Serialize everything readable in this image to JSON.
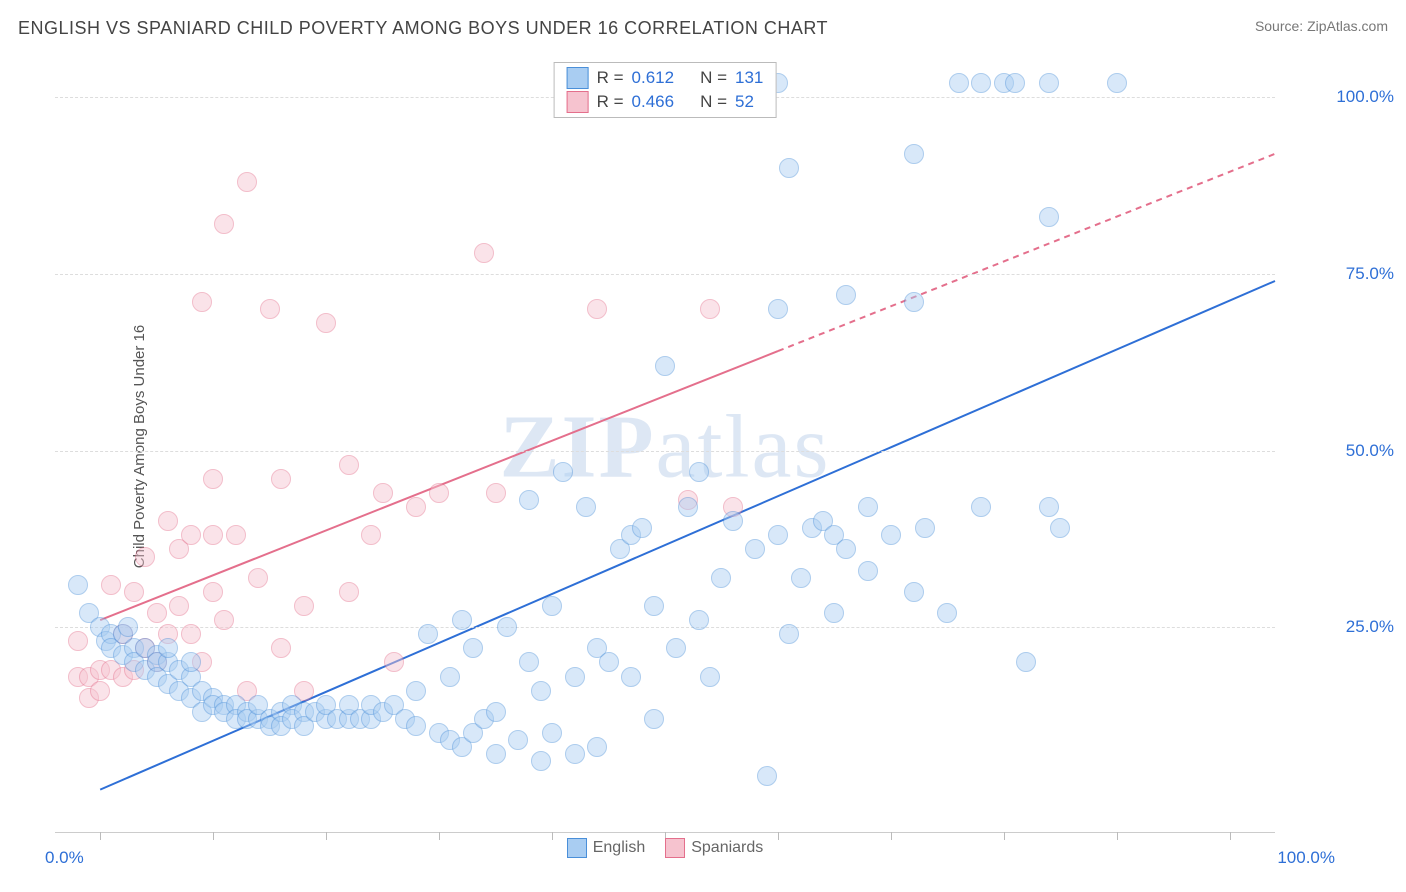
{
  "title": "ENGLISH VS SPANIARD CHILD POVERTY AMONG BOYS UNDER 16 CORRELATION CHART",
  "source_label": "Source: ",
  "source_name": "ZipAtlas.com",
  "y_axis_title": "Child Poverty Among Boys Under 16",
  "watermark_a": "ZIP",
  "watermark_b": "atlas",
  "chart": {
    "type": "scatter",
    "xlim": [
      -4,
      104
    ],
    "ylim": [
      -4,
      105
    ],
    "x_ticks": [
      0,
      10,
      20,
      30,
      40,
      50,
      60,
      70,
      80,
      90,
      100
    ],
    "y_grid": [
      25,
      50,
      75,
      100
    ],
    "x_label_min": "0.0%",
    "x_label_max": "100.0%",
    "y_labels": [
      {
        "v": 25,
        "t": "25.0%"
      },
      {
        "v": 50,
        "t": "50.0%"
      },
      {
        "v": 75,
        "t": "75.0%"
      },
      {
        "v": 100,
        "t": "100.0%"
      }
    ],
    "x_label_color": "#2e6fd6",
    "y_label_color": "#2e6fd6",
    "background_color": "#ffffff",
    "grid_color": "#dddddd",
    "marker_radius": 9,
    "marker_opacity": 0.45
  },
  "series": {
    "english": {
      "label": "English",
      "color_fill": "#a9cdf2",
      "color_stroke": "#4a8fd9",
      "R_label": "R =",
      "R": "0.612",
      "N_label": "N =",
      "N": "131",
      "stat_color": "#2e6fd6",
      "trend": {
        "x1": 0,
        "y1": 2,
        "x2": 104,
        "y2": 74,
        "solid_until_x": 104,
        "color": "#2e6fd6",
        "width": 2
      },
      "points": [
        [
          -2,
          31
        ],
        [
          -1,
          27
        ],
        [
          0,
          25
        ],
        [
          0.5,
          23
        ],
        [
          1,
          24
        ],
        [
          1,
          22
        ],
        [
          2,
          21
        ],
        [
          2,
          24
        ],
        [
          2.5,
          25
        ],
        [
          3,
          22
        ],
        [
          3,
          20
        ],
        [
          4,
          22
        ],
        [
          4,
          19
        ],
        [
          5,
          21
        ],
        [
          5,
          20
        ],
        [
          5,
          18
        ],
        [
          6,
          20
        ],
        [
          6,
          17
        ],
        [
          6,
          22
        ],
        [
          7,
          19
        ],
        [
          7,
          16
        ],
        [
          8,
          18
        ],
        [
          8,
          15
        ],
        [
          8,
          20
        ],
        [
          9,
          16
        ],
        [
          9,
          13
        ],
        [
          10,
          15
        ],
        [
          10,
          14
        ],
        [
          11,
          14
        ],
        [
          11,
          13
        ],
        [
          12,
          14
        ],
        [
          12,
          12
        ],
        [
          13,
          13
        ],
        [
          13,
          12
        ],
        [
          14,
          12
        ],
        [
          14,
          14
        ],
        [
          15,
          12
        ],
        [
          15,
          11
        ],
        [
          16,
          13
        ],
        [
          16,
          11
        ],
        [
          17,
          14
        ],
        [
          17,
          12
        ],
        [
          18,
          13
        ],
        [
          18,
          11
        ],
        [
          19,
          13
        ],
        [
          20,
          12
        ],
        [
          20,
          14
        ],
        [
          21,
          12
        ],
        [
          22,
          12
        ],
        [
          22,
          14
        ],
        [
          23,
          12
        ],
        [
          24,
          12
        ],
        [
          24,
          14
        ],
        [
          25,
          13
        ],
        [
          26,
          14
        ],
        [
          27,
          12
        ],
        [
          28,
          11
        ],
        [
          28,
          16
        ],
        [
          29,
          24
        ],
        [
          30,
          10
        ],
        [
          31,
          9
        ],
        [
          31,
          18
        ],
        [
          32,
          26
        ],
        [
          32,
          8
        ],
        [
          33,
          10
        ],
        [
          33,
          22
        ],
        [
          34,
          12
        ],
        [
          35,
          13
        ],
        [
          35,
          7
        ],
        [
          36,
          25
        ],
        [
          37,
          9
        ],
        [
          38,
          20
        ],
        [
          38,
          43
        ],
        [
          39,
          16
        ],
        [
          39,
          6
        ],
        [
          40,
          10
        ],
        [
          40,
          28
        ],
        [
          41,
          47
        ],
        [
          42,
          18
        ],
        [
          42,
          7
        ],
        [
          43,
          42
        ],
        [
          44,
          22
        ],
        [
          44,
          8
        ],
        [
          45,
          20
        ],
        [
          46,
          36
        ],
        [
          47,
          18
        ],
        [
          47,
          38
        ],
        [
          48,
          39
        ],
        [
          49,
          12
        ],
        [
          49,
          28
        ],
        [
          50,
          62
        ],
        [
          51,
          22
        ],
        [
          52,
          42
        ],
        [
          53,
          26
        ],
        [
          53,
          47
        ],
        [
          54,
          18
        ],
        [
          55,
          32
        ],
        [
          56,
          40
        ],
        [
          58,
          36
        ],
        [
          59,
          4
        ],
        [
          60,
          38
        ],
        [
          60,
          70
        ],
        [
          60,
          102
        ],
        [
          61,
          24
        ],
        [
          61,
          90
        ],
        [
          62,
          32
        ],
        [
          63,
          39
        ],
        [
          64,
          40
        ],
        [
          65,
          38
        ],
        [
          65,
          27
        ],
        [
          66,
          36
        ],
        [
          66,
          72
        ],
        [
          68,
          33
        ],
        [
          68,
          42
        ],
        [
          70,
          38
        ],
        [
          72,
          30
        ],
        [
          72,
          92
        ],
        [
          72,
          71
        ],
        [
          73,
          39
        ],
        [
          75,
          27
        ],
        [
          76,
          102
        ],
        [
          78,
          102
        ],
        [
          78,
          42
        ],
        [
          80,
          102
        ],
        [
          81,
          102
        ],
        [
          82,
          20
        ],
        [
          84,
          102
        ],
        [
          84,
          83
        ],
        [
          84,
          42
        ],
        [
          85,
          39
        ],
        [
          90,
          102
        ]
      ]
    },
    "spaniards": {
      "label": "Spaniards",
      "color_fill": "#f6c3cf",
      "color_stroke": "#e46f8c",
      "R_label": "R =",
      "R": "0.466",
      "N_label": "N =",
      "N": "52",
      "stat_color": "#2e6fd6",
      "trend": {
        "x1": 0,
        "y1": 26,
        "x2": 104,
        "y2": 92,
        "solid_until_x": 60,
        "color": "#e46f8c",
        "width": 2
      },
      "points": [
        [
          -2,
          23
        ],
        [
          -2,
          18
        ],
        [
          -1,
          18
        ],
        [
          -1,
          15
        ],
        [
          0,
          19
        ],
        [
          0,
          16
        ],
        [
          1,
          19
        ],
        [
          1,
          31
        ],
        [
          2,
          18
        ],
        [
          2,
          24
        ],
        [
          3,
          19
        ],
        [
          3,
          30
        ],
        [
          4,
          22
        ],
        [
          4,
          35
        ],
        [
          5,
          20
        ],
        [
          5,
          27
        ],
        [
          6,
          24
        ],
        [
          6,
          40
        ],
        [
          7,
          36
        ],
        [
          7,
          28
        ],
        [
          8,
          38
        ],
        [
          8,
          24
        ],
        [
          9,
          71
        ],
        [
          9,
          20
        ],
        [
          10,
          38
        ],
        [
          10,
          30
        ],
        [
          10,
          46
        ],
        [
          11,
          26
        ],
        [
          11,
          82
        ],
        [
          12,
          38
        ],
        [
          13,
          88
        ],
        [
          13,
          16
        ],
        [
          14,
          32
        ],
        [
          15,
          70
        ],
        [
          16,
          22
        ],
        [
          16,
          46
        ],
        [
          18,
          28
        ],
        [
          18,
          16
        ],
        [
          20,
          68
        ],
        [
          22,
          30
        ],
        [
          22,
          48
        ],
        [
          24,
          38
        ],
        [
          25,
          44
        ],
        [
          26,
          20
        ],
        [
          28,
          42
        ],
        [
          30,
          44
        ],
        [
          34,
          78
        ],
        [
          35,
          44
        ],
        [
          44,
          70
        ],
        [
          52,
          43
        ],
        [
          54,
          70
        ],
        [
          56,
          42
        ]
      ]
    }
  },
  "legend_bottom": [
    {
      "key": "english"
    },
    {
      "key": "spaniards"
    }
  ]
}
